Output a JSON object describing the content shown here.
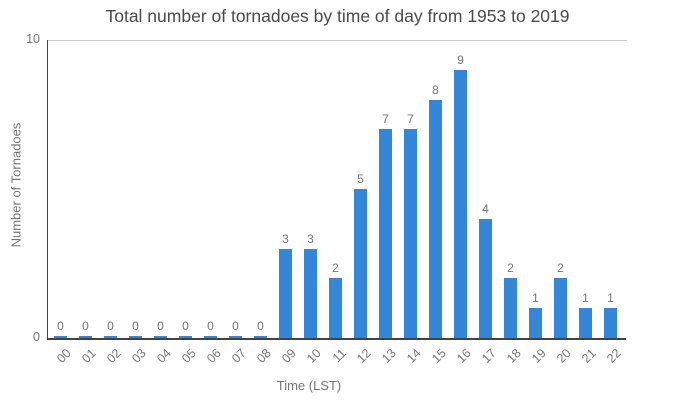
{
  "chart_data": {
    "type": "bar",
    "title": "Total number of tornadoes by time of day from 1953 to 2019",
    "xlabel": "Time (LST)",
    "ylabel": "Number of Tornadoes",
    "categories": [
      "00",
      "01",
      "02",
      "03",
      "04",
      "05",
      "06",
      "07",
      "08",
      "09",
      "10",
      "11",
      "12",
      "13",
      "14",
      "15",
      "16",
      "17",
      "18",
      "19",
      "20",
      "21",
      "22"
    ],
    "values": [
      0,
      0,
      0,
      0,
      0,
      0,
      0,
      0,
      0,
      3,
      3,
      2,
      5,
      7,
      7,
      8,
      9,
      4,
      2,
      1,
      2,
      1,
      1
    ],
    "ylim": [
      0,
      10
    ],
    "yticks": [
      0,
      10
    ],
    "value_labels": true,
    "x_tick_rotation": -45,
    "legend": "none",
    "grid": "horizontal-gridline-at-top-tick-only"
  },
  "colors": {
    "bar": "#3486d8",
    "title_text": "#4a4a4a",
    "axis_text": "#757575",
    "axis_line": "#424242",
    "gridline": "#cccccc",
    "background": "#ffffff"
  }
}
